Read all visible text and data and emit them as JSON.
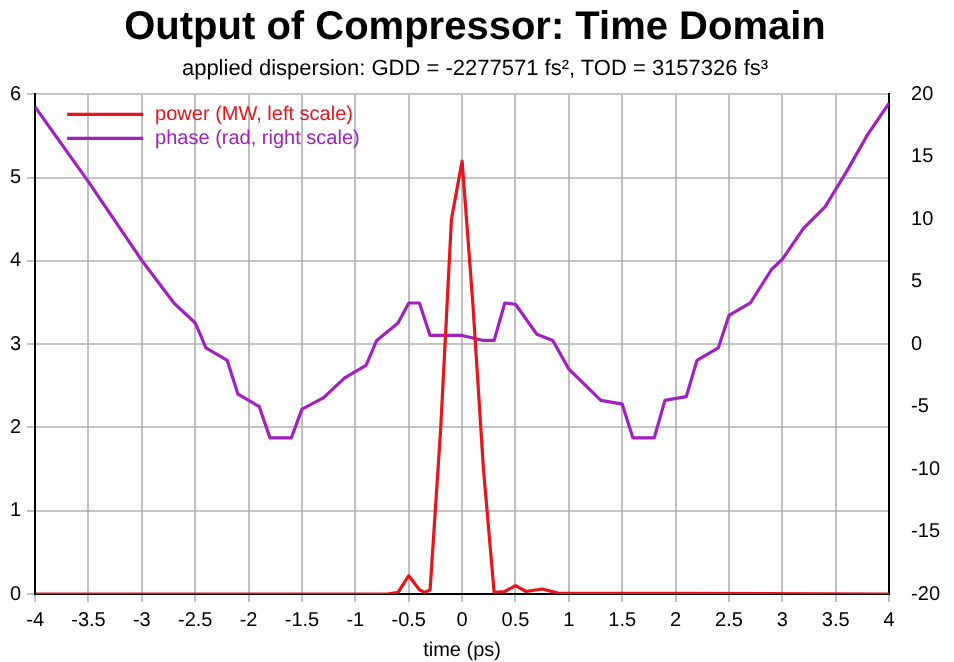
{
  "chart_data": {
    "type": "line",
    "title": "Output of Compressor: Time Domain",
    "subtitle": "applied dispersion: GDD = -2277571 fs², TOD = 3157326 fs³",
    "xlabel": "time (ps)",
    "xlim": [
      -4,
      4
    ],
    "xticks": [
      -4,
      -3.5,
      -3,
      -2.5,
      -2,
      -1.5,
      -1,
      -0.5,
      0,
      0.5,
      1,
      1.5,
      2,
      2.5,
      3,
      3.5,
      4
    ],
    "ylim": [
      0,
      6
    ],
    "yticks": [
      0,
      1,
      2,
      3,
      4,
      5,
      6
    ],
    "y2lim": [
      -20,
      20
    ],
    "y2ticks": [
      -20,
      -15,
      -10,
      -5,
      0,
      5,
      10,
      15,
      20
    ],
    "grid": true,
    "legend": "top left",
    "marker": "none",
    "line_style": "solid",
    "series": [
      {
        "name": "power (MW, left scale)",
        "color": "#e8141c",
        "x": [
          -4,
          -0.7,
          -0.6,
          -0.5,
          -0.4,
          -0.35,
          -0.3,
          -0.2,
          -0.1,
          0,
          0.1,
          0.2,
          0.3,
          0.4,
          0.5,
          0.6,
          0.75,
          0.9,
          4
        ],
        "values": [
          0,
          0,
          0.02,
          0.22,
          0.05,
          0.02,
          0.05,
          2,
          4.5,
          5.2,
          3.5,
          1.5,
          0.02,
          0.03,
          0.1,
          0.03,
          0.06,
          0.01,
          0
        ]
      },
      {
        "name": "phase (rad, right scale)",
        "color": "#a020c0",
        "axis": "y2",
        "x": [
          -4,
          -3.5,
          -3,
          -2.7,
          -2.5,
          -2.4,
          -2.2,
          -2.1,
          -1.9,
          -1.8,
          -1.6,
          -1.5,
          -1.3,
          -1.1,
          -0.9,
          -0.8,
          -0.6,
          -0.5,
          -0.4,
          -0.3,
          0,
          0.1,
          0.2,
          0.3,
          0.4,
          0.5,
          0.7,
          0.85,
          1,
          1.3,
          1.5,
          1.6,
          1.8,
          1.9,
          2.1,
          2.2,
          2.4,
          2.5,
          2.7,
          2.9,
          3,
          3.2,
          3.4,
          3.6,
          3.8,
          4
        ],
        "values": [
          19,
          13,
          6.7,
          3.3,
          1.7,
          -0.3,
          -1.3,
          -4,
          -5,
          -7.5,
          -7.5,
          -5.2,
          -4.3,
          -2.7,
          -1.7,
          0.3,
          1.7,
          3.3,
          3.3,
          0.7,
          0.7,
          0.5,
          0.3,
          0.3,
          3.3,
          3.2,
          0.8,
          0.3,
          -2,
          -4.5,
          -4.8,
          -7.5,
          -7.5,
          -4.5,
          -4.2,
          -1.3,
          -0.3,
          2.3,
          3.3,
          6,
          6.8,
          9.3,
          11,
          13.8,
          16.8,
          19.3
        ]
      }
    ]
  }
}
